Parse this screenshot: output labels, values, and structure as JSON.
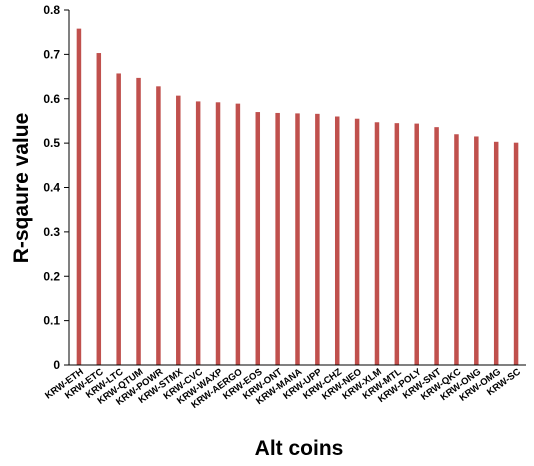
{
  "chart_data": {
    "type": "bar",
    "title": "",
    "xlabel": "Alt coins",
    "ylabel": "R-sqaure value",
    "ylim": [
      0,
      0.8
    ],
    "yticks": [
      "0",
      "0.1",
      "0.2",
      "0.3",
      "0.4",
      "0.5",
      "0.6",
      "0.7",
      "0.8"
    ],
    "grid": false,
    "legend": "none",
    "bar_color": "#c0504d",
    "categories": [
      "KRW-ETH",
      "KRW-ETC",
      "KRW-LTC",
      "KRW-QTUM",
      "KRW-POWR",
      "KRW-STMX",
      "KRW-CVC",
      "KRW-WAXP",
      "KRW-AERGO",
      "KRW-EOS",
      "KRW-ONT",
      "KRW-MANA",
      "KRW-UPP",
      "KRW-CHZ",
      "KRW-NEO",
      "KRW-XLM",
      "KRW-MTL",
      "KRW-POLY",
      "KRW-SNT",
      "KRW-QKC",
      "KRW-ONG",
      "KRW-OMG",
      "KRW-SC"
    ],
    "values": [
      0.758,
      0.703,
      0.657,
      0.647,
      0.628,
      0.607,
      0.594,
      0.592,
      0.589,
      0.57,
      0.568,
      0.567,
      0.566,
      0.56,
      0.555,
      0.547,
      0.545,
      0.544,
      0.536,
      0.52,
      0.515,
      0.503,
      0.501
    ]
  }
}
